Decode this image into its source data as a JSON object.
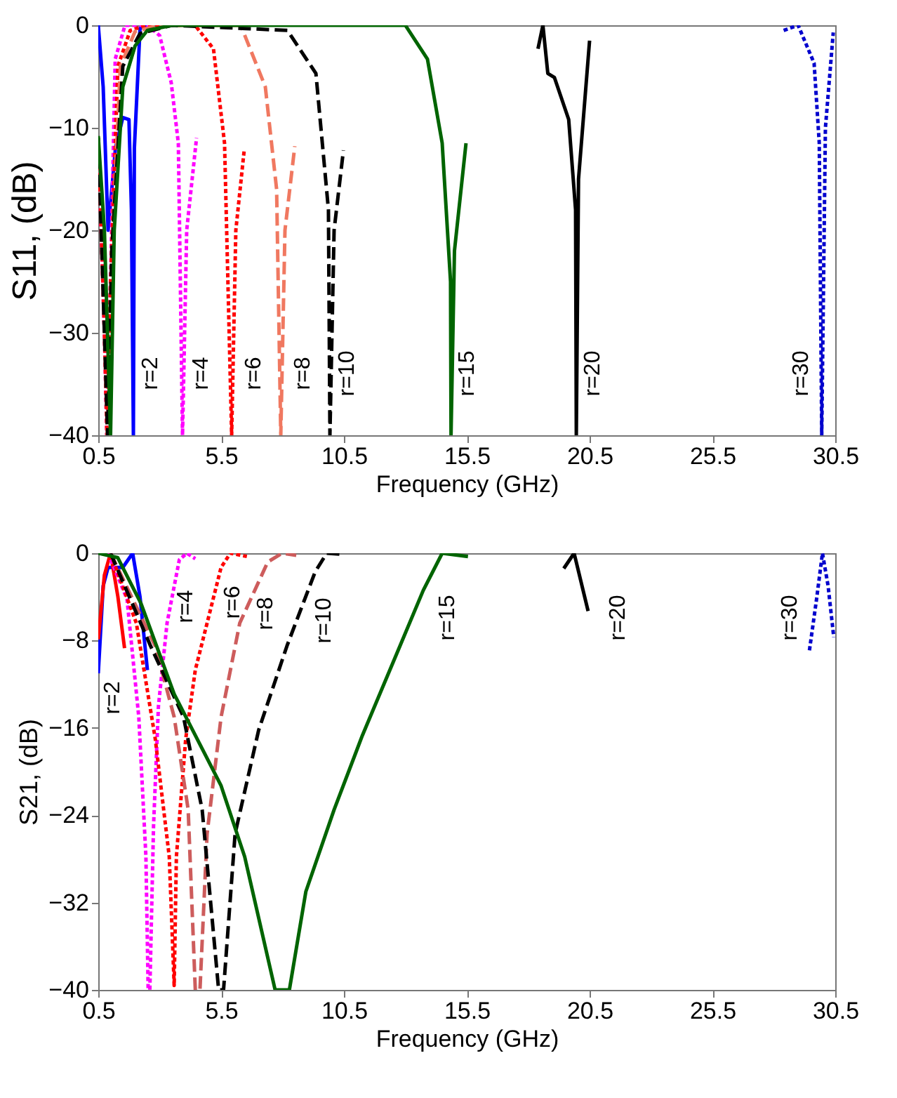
{
  "chart_data": [
    {
      "type": "line",
      "xlabel": "Frequency (GHz)",
      "ylabel": "S11, (dB)",
      "xlim": [
        0.5,
        30.5
      ],
      "ylim": [
        -40,
        0
      ],
      "xticks": [
        0.5,
        5.5,
        10.5,
        15.5,
        20.5,
        25.5,
        30.5
      ],
      "yticks": [
        -40,
        -30,
        -20,
        -10,
        0
      ],
      "series": [
        {
          "name": "r=2",
          "color": "#0000ff",
          "line_style": "solid",
          "x": [
            0.5,
            0.7,
            0.9,
            1.2,
            1.5,
            1.75,
            1.85,
            1.93,
            1.97,
            2.2,
            2.5
          ],
          "values": [
            0,
            -6,
            -20,
            -12,
            -9,
            -9.2,
            -18,
            -40,
            -12,
            -0.3,
            0
          ]
        },
        {
          "name": "r=4",
          "color": "#ff00ff",
          "line_style": "dotted",
          "x": [
            0.5,
            0.75,
            0.85,
            1.0,
            1.19,
            1.59,
            2.5,
            3.0,
            3.47,
            3.76,
            3.93,
            4.1,
            4.5
          ],
          "values": [
            -11,
            -30,
            -40,
            -25,
            -3.3,
            0,
            0,
            -1,
            -5.6,
            -11.5,
            -40,
            -20,
            -11
          ]
        },
        {
          "name": "r=6",
          "color": "#ff0000",
          "line_style": "dotted",
          "x": [
            0.5,
            0.75,
            0.85,
            1.0,
            1.3,
            1.8,
            2.5,
            4.44,
            5.19,
            5.64,
            5.93,
            6.1,
            6.44
          ],
          "values": [
            -11,
            -30,
            -40,
            -25,
            -4,
            -0.5,
            0,
            0,
            -2.3,
            -11.5,
            -40,
            -20,
            -12.2
          ]
        },
        {
          "name": "r=8",
          "color": "#f07860",
          "line_style": "dashed",
          "x": [
            0.5,
            0.75,
            0.87,
            1.05,
            1.4,
            2.0,
            3.0,
            6.3,
            7.3,
            7.76,
            7.93,
            8.1,
            8.5
          ],
          "values": [
            -11,
            -30,
            -40,
            -22,
            -4,
            -0.6,
            0,
            0,
            -6,
            -16,
            -40,
            -20,
            -11.8
          ]
        },
        {
          "name": "r=10",
          "color": "#000000",
          "line_style": "dashed",
          "x": [
            0.5,
            0.75,
            0.88,
            1.05,
            1.5,
            2.2,
            3.5,
            8.2,
            9.36,
            9.87,
            9.93,
            10.1,
            10.48
          ],
          "values": [
            -11,
            -30,
            -40,
            -22,
            -4,
            -0.8,
            0,
            -0.5,
            -4.7,
            -18,
            -40,
            -20,
            -12.2
          ]
        },
        {
          "name": "r=15",
          "color": "#006400",
          "line_style": "solid",
          "x": [
            0.5,
            0.75,
            1.0,
            1.15,
            1.5,
            2.0,
            2.5,
            3.5,
            13.0,
            13.9,
            14.5,
            14.84,
            14.86,
            15.0,
            15.47
          ],
          "values": [
            -10.8,
            -20,
            -40,
            -20,
            -6,
            -2,
            -0.5,
            0,
            0,
            -3.3,
            -11.5,
            -25,
            -40,
            -22,
            -11.5
          ]
        },
        {
          "name": "r=20",
          "color": "#000000",
          "line_style": "solid",
          "x": [
            18.4,
            18.6,
            18.8,
            19.07,
            19.65,
            19.93,
            19.96,
            20.05,
            20.5
          ],
          "values": [
            -2.3,
            0,
            -4.7,
            -5.1,
            -9.2,
            -18,
            -40,
            -15,
            -1.5
          ]
        },
        {
          "name": "r=30",
          "color": "#0000cd",
          "line_style": "dotted",
          "x": [
            28.4,
            28.99,
            29.64,
            29.85,
            29.95,
            30.1,
            30.42
          ],
          "values": [
            -0.5,
            0,
            -3.7,
            -11.5,
            -40,
            -10,
            -0.7
          ]
        }
      ]
    },
    {
      "type": "line",
      "xlabel": "Frequency (GHz)",
      "ylabel": "S21, (dB)",
      "xlim": [
        0.5,
        30.5
      ],
      "ylim": [
        -40,
        0
      ],
      "xticks": [
        0.5,
        5.5,
        10.5,
        15.5,
        20.5,
        25.5,
        30.5
      ],
      "yticks": [
        -40,
        -32,
        -24,
        -16,
        -8,
        0
      ],
      "series": [
        {
          "name": "r=2",
          "color": "#0000ff",
          "line_style": "solid",
          "x": [
            0.5,
            0.7,
            0.9,
            1.5,
            1.9,
            2.2,
            2.5
          ],
          "values": [
            -11,
            -3,
            -1.3,
            -1.3,
            0,
            -4,
            -10.7
          ]
        },
        {
          "color": "#ff0000",
          "line_style": "solid",
          "x": [
            0.5,
            0.75,
            1.0,
            1.3,
            1.57
          ],
          "values": [
            -7.9,
            -2,
            0,
            -4,
            -8.7
          ]
        },
        {
          "name": "r=4",
          "color": "#ff00ff",
          "line_style": "dotted",
          "x": [
            0.9,
            1.67,
            2.15,
            2.44,
            2.53,
            2.6,
            2.75,
            2.95,
            3.3,
            3.8,
            4.1,
            4.45
          ],
          "values": [
            0,
            -4.2,
            -15,
            -27.8,
            -39.9,
            -40,
            -25,
            -14,
            -6.4,
            -0.6,
            0,
            -0.5
          ]
        },
        {
          "name": "r=6",
          "color": "#ff0000",
          "line_style": "dotted",
          "x": [
            1.0,
            2.05,
            2.82,
            3.39,
            3.59,
            3.68,
            4.06,
            4.45,
            4.93,
            5.5,
            5.88,
            6.55
          ],
          "values": [
            0,
            -6.4,
            -17,
            -27.8,
            -39.6,
            -27.8,
            -17,
            -10.7,
            -6.4,
            -1.3,
            0,
            -0.3
          ]
        },
        {
          "name": "r=8",
          "color": "#cd5c5c",
          "line_style": "dashed",
          "x": [
            1.0,
            2.82,
            3.59,
            4.16,
            4.45,
            4.64,
            4.93,
            5.5,
            6.26,
            7.4,
            7.99,
            8.56
          ],
          "values": [
            0,
            -8.5,
            -15,
            -23.5,
            -40,
            -40,
            -25.7,
            -15,
            -6.4,
            -0.8,
            0,
            -0.2
          ]
        },
        {
          "name": "r=10",
          "color": "#000000",
          "line_style": "dashed",
          "x": [
            1.0,
            2.63,
            3.97,
            4.73,
            5.4,
            5.6,
            6.07,
            7.03,
            8.18,
            9.33,
            9.8,
            10.48
          ],
          "values": [
            0,
            -8.5,
            -15,
            -23.5,
            -40,
            -40,
            -25.7,
            -16.2,
            -8.5,
            -1.7,
            0,
            -0.1
          ]
        },
        {
          "name": "r=15",
          "color": "#006400",
          "line_style": "solid",
          "x": [
            0.5,
            1.29,
            2.24,
            3.59,
            5.5,
            6.46,
            7.7,
            8.28,
            8.95,
            10.1,
            11.25,
            12.78,
            13.73,
            14.5,
            15.55
          ],
          "values": [
            0,
            -0.4,
            -4.6,
            -12.9,
            -21.3,
            -27.8,
            -40,
            -40,
            -31,
            -23.5,
            -16.7,
            -8.5,
            -3.4,
            0,
            -0.3
          ]
        },
        {
          "name": "r=20",
          "color": "#000000",
          "line_style": "solid",
          "x": [
            19.45,
            19.87,
            20.44
          ],
          "values": [
            -1.4,
            0,
            -5.3
          ]
        },
        {
          "name": "r=30",
          "color": "#0000cd",
          "line_style": "dotted",
          "x": [
            29.45,
            29.74,
            29.98,
            30.21,
            30.44
          ],
          "values": [
            -8.9,
            -4.2,
            0,
            -3,
            -7.7
          ]
        }
      ]
    }
  ]
}
